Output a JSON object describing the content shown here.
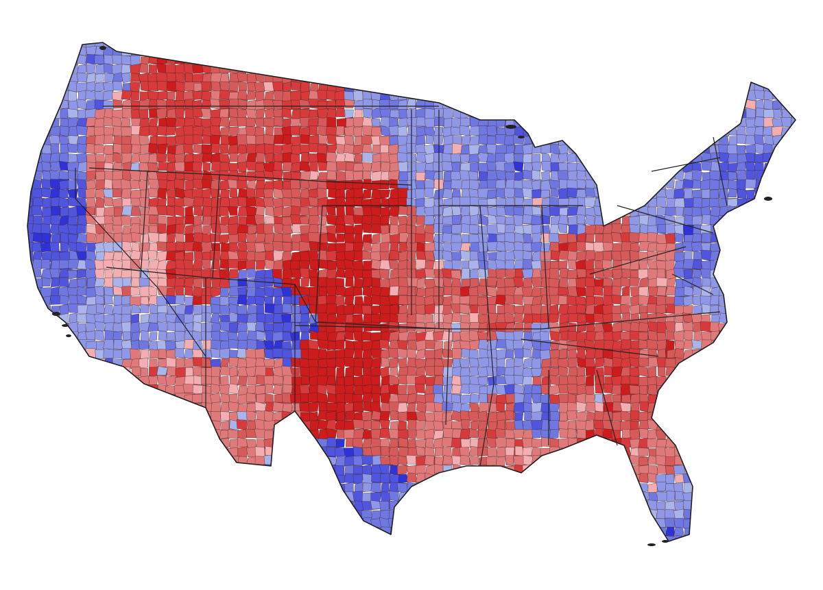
{
  "map": {
    "type": "choropleth",
    "subject": "contiguous-united-states-counties",
    "palette": {
      "dark_red": "#cc1c1c",
      "red": "#d63a3a",
      "mid_red": "#d65a5a",
      "light_red": "#e07a7a",
      "pale_red": "#f2aeb0",
      "pale_blue": "#a9b4ea",
      "light_blue": "#8f98e6",
      "mid_blue": "#6f78e0",
      "blue": "#4f55dc",
      "dark_blue": "#2f33d6",
      "border": "#222222",
      "background": "#ffffff"
    },
    "shading_scale": [
      "dark_red",
      "red",
      "mid_red",
      "light_red",
      "pale_red",
      "pale_blue",
      "light_blue",
      "mid_blue",
      "blue",
      "dark_blue"
    ],
    "regions": [
      {
        "name": "pacific-northwest",
        "lean": "mixed",
        "dominant": "light_blue"
      },
      {
        "name": "california-coast",
        "lean": "blue",
        "dominant": "mid_blue"
      },
      {
        "name": "great-basin",
        "lean": "red",
        "dominant": "light_red"
      },
      {
        "name": "mountain-west",
        "lean": "red",
        "dominant": "red"
      },
      {
        "name": "southwest",
        "lean": "mixed",
        "dominant": "light_blue"
      },
      {
        "name": "great-plains",
        "lean": "red",
        "dominant": "dark_red"
      },
      {
        "name": "upper-midwest",
        "lean": "blue",
        "dominant": "light_blue"
      },
      {
        "name": "texas",
        "lean": "red",
        "dominant": "red"
      },
      {
        "name": "south-texas",
        "lean": "blue",
        "dominant": "blue"
      },
      {
        "name": "appalachia",
        "lean": "red",
        "dominant": "red"
      },
      {
        "name": "deep-south",
        "lean": "red",
        "dominant": "mid_red"
      },
      {
        "name": "black-belt",
        "lean": "blue",
        "dominant": "mid_blue"
      },
      {
        "name": "mississippi-delta",
        "lean": "blue",
        "dominant": "mid_blue"
      },
      {
        "name": "northeast",
        "lean": "blue",
        "dominant": "mid_blue"
      },
      {
        "name": "new-england",
        "lean": "blue",
        "dominant": "light_blue"
      },
      {
        "name": "florida",
        "lean": "mixed",
        "dominant": "light_red"
      }
    ]
  }
}
